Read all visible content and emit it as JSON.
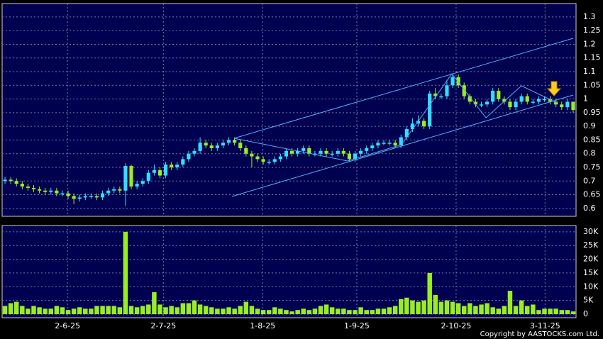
{
  "chart_data": [
    {
      "type": "candlestick",
      "xlim": [
        -0.5,
        99.5
      ],
      "ylim": [
        0.571,
        1.349
      ],
      "yticks": [
        0.6,
        0.65,
        0.7,
        0.75,
        0.8,
        0.85,
        0.9,
        0.95,
        1,
        1.05,
        1.1,
        1.15,
        1.2,
        1.25,
        1.3
      ],
      "grid": true,
      "up_color": "#33ddff",
      "down_color": "#99ee22",
      "open": [
        0.7,
        0.705,
        0.7,
        0.69,
        0.68,
        0.675,
        0.67,
        0.665,
        0.66,
        0.665,
        0.655,
        0.655,
        0.645,
        0.635,
        0.64,
        0.645,
        0.645,
        0.64,
        0.655,
        0.665,
        0.67,
        0.665,
        0.755,
        0.68,
        0.69,
        0.7,
        0.73,
        0.74,
        0.72,
        0.76,
        0.75,
        0.76,
        0.78,
        0.8,
        0.81,
        0.84,
        0.83,
        0.82,
        0.83,
        0.84,
        0.85,
        0.84,
        0.82,
        0.8,
        0.79,
        0.78,
        0.77,
        0.77,
        0.78,
        0.79,
        0.81,
        0.8,
        0.81,
        0.82,
        0.8,
        0.8,
        0.81,
        0.8,
        0.8,
        0.81,
        0.8,
        0.78,
        0.8,
        0.81,
        0.82,
        0.83,
        0.84,
        0.84,
        0.84,
        0.83,
        0.86,
        0.89,
        0.91,
        0.92,
        0.9,
        1.02,
        1.01,
        1.01,
        1.05,
        1.08,
        1.05,
        1.01,
        0.99,
        0.98,
        0.98,
        0.99,
        1.03,
        1.0,
        0.99,
        0.97,
        0.99,
        1.01,
        0.99,
        0.99,
        1.0,
        1.0,
        0.99,
        0.98,
        0.97,
        0.99
      ],
      "high": [
        0.715,
        0.715,
        0.71,
        0.7,
        0.69,
        0.685,
        0.68,
        0.675,
        0.675,
        0.675,
        0.665,
        0.665,
        0.655,
        0.65,
        0.655,
        0.655,
        0.655,
        0.665,
        0.675,
        0.68,
        0.68,
        0.765,
        0.76,
        0.7,
        0.71,
        0.74,
        0.76,
        0.75,
        0.77,
        0.77,
        0.77,
        0.79,
        0.81,
        0.82,
        0.86,
        0.85,
        0.84,
        0.84,
        0.85,
        0.86,
        0.86,
        0.85,
        0.83,
        0.81,
        0.8,
        0.79,
        0.78,
        0.79,
        0.8,
        0.82,
        0.82,
        0.82,
        0.83,
        0.83,
        0.81,
        0.82,
        0.82,
        0.81,
        0.82,
        0.82,
        0.81,
        0.81,
        0.82,
        0.83,
        0.84,
        0.85,
        0.85,
        0.85,
        0.85,
        0.87,
        0.9,
        0.93,
        0.94,
        0.93,
        1.03,
        1.04,
        1.02,
        1.07,
        1.09,
        1.09,
        1.06,
        1.02,
        1.0,
        0.99,
        1.0,
        1.04,
        1.04,
        1.01,
        1.0,
        1.0,
        1.02,
        1.02,
        1.0,
        1.01,
        1.01,
        1.01,
        1.0,
        0.99,
        1.0,
        0.99
      ],
      "low": [
        0.69,
        0.69,
        0.68,
        0.67,
        0.665,
        0.66,
        0.655,
        0.65,
        0.65,
        0.645,
        0.645,
        0.635,
        0.615,
        0.625,
        0.63,
        0.635,
        0.63,
        0.63,
        0.645,
        0.655,
        0.655,
        0.61,
        0.67,
        0.67,
        0.68,
        0.69,
        0.72,
        0.71,
        0.71,
        0.74,
        0.74,
        0.75,
        0.77,
        0.79,
        0.8,
        0.82,
        0.81,
        0.81,
        0.82,
        0.83,
        0.83,
        0.81,
        0.79,
        0.75,
        0.77,
        0.76,
        0.76,
        0.76,
        0.77,
        0.78,
        0.79,
        0.79,
        0.8,
        0.79,
        0.79,
        0.79,
        0.79,
        0.79,
        0.79,
        0.79,
        0.77,
        0.77,
        0.79,
        0.8,
        0.81,
        0.82,
        0.83,
        0.83,
        0.82,
        0.82,
        0.85,
        0.88,
        0.9,
        0.89,
        0.89,
        1.0,
        1.0,
        1.0,
        1.04,
        1.04,
        1.0,
        0.98,
        0.97,
        0.97,
        0.97,
        0.98,
        0.99,
        0.98,
        0.96,
        0.96,
        0.98,
        0.98,
        0.98,
        0.98,
        0.99,
        0.98,
        0.97,
        0.96,
        0.96,
        0.95
      ],
      "close": [
        0.705,
        0.7,
        0.69,
        0.68,
        0.675,
        0.67,
        0.665,
        0.66,
        0.665,
        0.655,
        0.655,
        0.645,
        0.635,
        0.64,
        0.645,
        0.645,
        0.64,
        0.655,
        0.665,
        0.67,
        0.665,
        0.755,
        0.68,
        0.69,
        0.7,
        0.73,
        0.74,
        0.72,
        0.76,
        0.75,
        0.76,
        0.78,
        0.8,
        0.81,
        0.84,
        0.83,
        0.82,
        0.83,
        0.84,
        0.85,
        0.84,
        0.82,
        0.8,
        0.79,
        0.78,
        0.77,
        0.77,
        0.78,
        0.79,
        0.81,
        0.8,
        0.81,
        0.82,
        0.8,
        0.8,
        0.81,
        0.8,
        0.8,
        0.81,
        0.8,
        0.78,
        0.8,
        0.81,
        0.82,
        0.83,
        0.84,
        0.84,
        0.84,
        0.83,
        0.86,
        0.89,
        0.91,
        0.92,
        0.9,
        1.02,
        1.01,
        1.01,
        1.05,
        1.08,
        1.05,
        1.01,
        0.99,
        0.98,
        0.98,
        0.99,
        1.03,
        1.0,
        0.99,
        0.97,
        0.99,
        1.01,
        0.99,
        0.99,
        1.0,
        1.0,
        0.99,
        0.98,
        0.97,
        0.99,
        0.96
      ]
    },
    {
      "type": "bar",
      "xlim": [
        -0.5,
        99.5
      ],
      "ylim": [
        -1300,
        32300
      ],
      "color": "#99ee22",
      "grid": true,
      "yticks": [
        0,
        {
          "value": 5000,
          "label": "5K"
        },
        {
          "value": 10000,
          "label": "10K"
        },
        {
          "value": 15000,
          "label": "15K"
        },
        {
          "value": 20000,
          "label": "20K"
        },
        {
          "value": 25000,
          "label": "25K"
        },
        {
          "value": 30000,
          "label": "30K"
        }
      ],
      "xticks": [
        {
          "value": 10.9,
          "label": "2-6-25"
        },
        {
          "value": 27.6,
          "label": "2-7-25"
        },
        {
          "value": 44.9,
          "label": "1-8-25"
        },
        {
          "value": 61.3,
          "label": "1-9-25"
        },
        {
          "value": 78.6,
          "label": "2-10-25"
        },
        {
          "value": 94.1,
          "label": "3-11-25"
        }
      ],
      "values": [
        3000,
        4000,
        4500,
        3000,
        2000,
        3000,
        2500,
        2000,
        2000,
        3000,
        2500,
        1500,
        2000,
        2500,
        2000,
        2000,
        3000,
        3000,
        3000,
        3000,
        2500,
        30000,
        3000,
        2500,
        3000,
        3500,
        8000,
        3500,
        2500,
        3000,
        2500,
        4000,
        4000,
        5000,
        3500,
        3000,
        2500,
        2000,
        2000,
        2500,
        2000,
        3000,
        4500,
        3000,
        2000,
        1500,
        1500,
        2500,
        2000,
        1500,
        1000,
        1500,
        2000,
        1500,
        2000,
        3000,
        3500,
        2500,
        2000,
        2000,
        1500,
        1500,
        2500,
        1500,
        1500,
        2000,
        2000,
        2500,
        3000,
        5500,
        6000,
        5000,
        4500,
        5000,
        15000,
        7000,
        4500,
        5000,
        4500,
        4000,
        3000,
        4000,
        3000,
        3500,
        4000,
        2500,
        2000,
        3000,
        8500,
        3000,
        5000,
        3000,
        3500,
        1500,
        2000,
        2000,
        2000,
        1500,
        1500,
        1000
      ]
    }
  ],
  "copyright": "Copyright by AASTOCKS.com Ltd."
}
